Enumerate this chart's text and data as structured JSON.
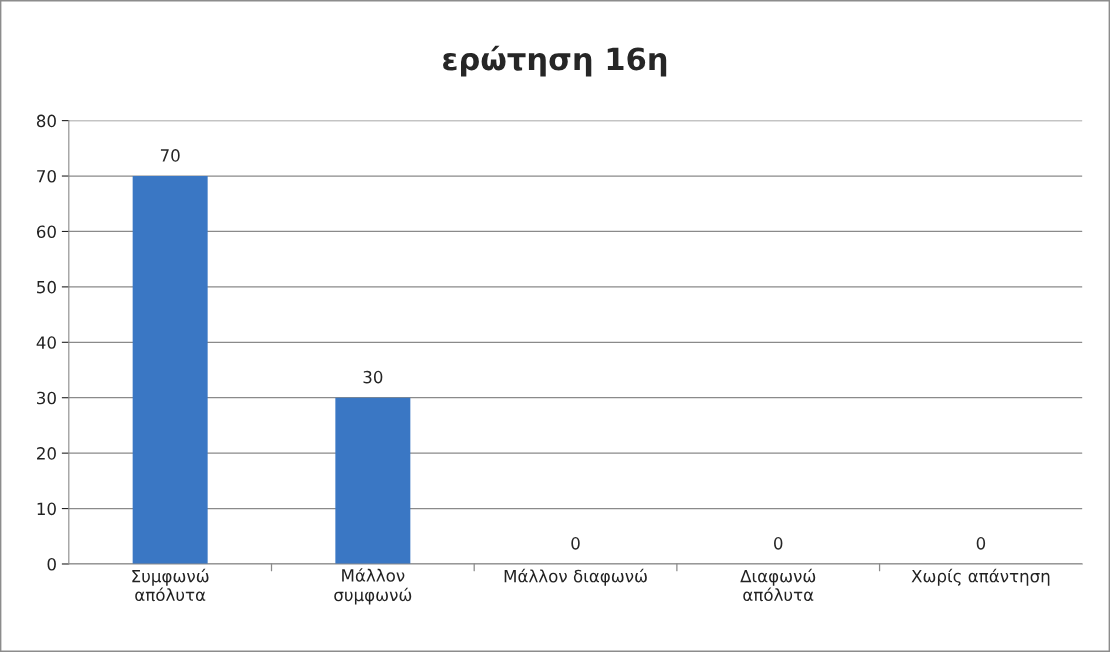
{
  "chart_data": {
    "type": "bar",
    "title": "ερώτηση 16η",
    "categories": [
      "Συμφωνώ\nαπόλυτα",
      "Μάλλον\nσυμφωνώ",
      "Μάλλον διαφωνώ",
      "Διαφωνώ\nαπόλυτα",
      "Χωρίς απάντηση"
    ],
    "values": [
      70,
      30,
      0,
      0,
      0
    ],
    "color": "#3a77c4",
    "ylim": [
      0,
      80
    ],
    "yticks": [
      0,
      10,
      20,
      30,
      40,
      50,
      60,
      70,
      80
    ],
    "grid": "y",
    "data_labels": true
  }
}
